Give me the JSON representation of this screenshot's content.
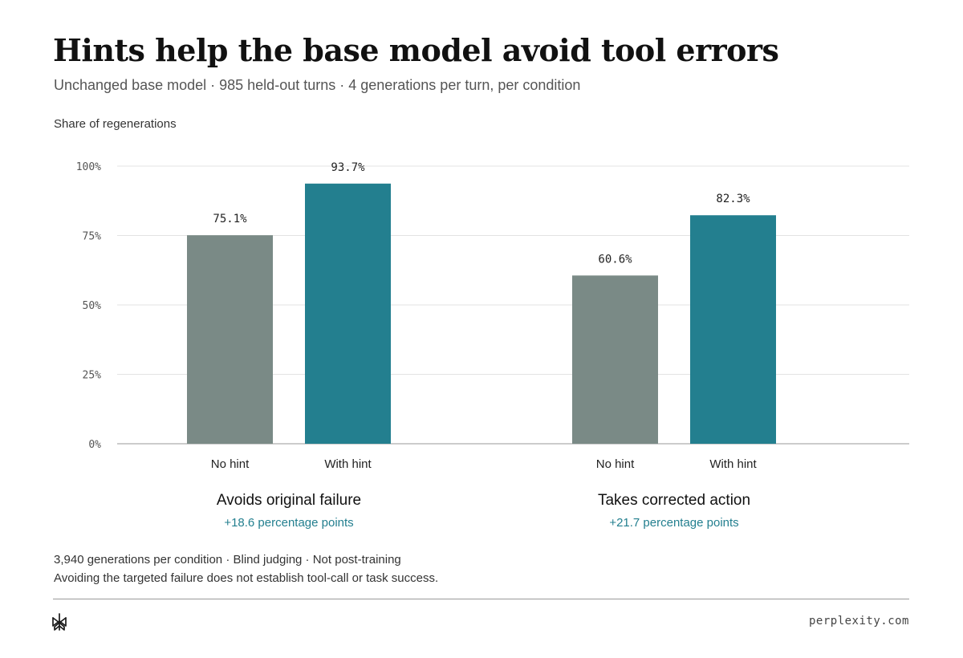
{
  "title": "Hints help the base model avoid tool errors",
  "subtitle": "Unchanged base model · 985 held-out turns · 4 generations per turn, per condition",
  "footer": {
    "note1": "3,940 generations per condition · Blind judging · Not post-training",
    "note2": "Avoiding the targeted failure does not establish tool-call or task success.",
    "domain": "perplexity.com",
    "logo_icon": "perplexity-logo-icon"
  },
  "colors": {
    "no_hint": "#7a8a86",
    "with_hint": "#237f8f",
    "delta_text": "#237f8f",
    "grid": "#e3e3e3",
    "axis": "#999999"
  },
  "chart_data": {
    "type": "bar",
    "ylabel": "Share of regenerations",
    "ylim": [
      0,
      100
    ],
    "yticks": [
      0,
      25,
      50,
      75,
      100
    ],
    "ytick_labels": [
      "0%",
      "25%",
      "50%",
      "75%",
      "100%"
    ],
    "grid": true,
    "legend": "none",
    "categories": [
      "Avoids original failure",
      "Takes corrected action"
    ],
    "deltas": [
      "+18.6 percentage points",
      "+21.7 percentage points"
    ],
    "series": [
      {
        "name": "No hint",
        "values": [
          75.1,
          60.6
        ],
        "labels": [
          "75.1%",
          "60.6%"
        ]
      },
      {
        "name": "With hint",
        "values": [
          93.7,
          82.3
        ],
        "labels": [
          "93.7%",
          "82.3%"
        ]
      }
    ]
  }
}
